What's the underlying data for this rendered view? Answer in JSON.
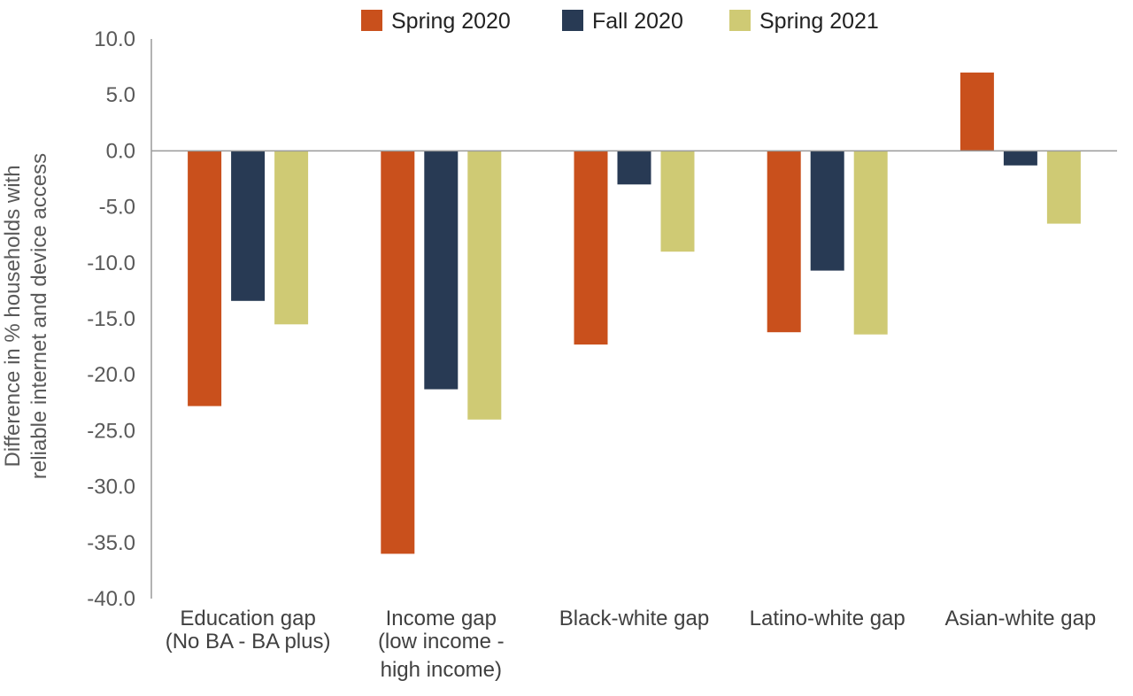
{
  "chart_data": {
    "type": "bar",
    "categories": [
      [
        "Education gap",
        "(No BA - BA plus)"
      ],
      [
        "Income gap",
        "(low income -",
        "high income)"
      ],
      [
        "Black-white gap"
      ],
      [
        "Latino-white gap"
      ],
      [
        "Asian-white gap"
      ]
    ],
    "series": [
      {
        "name": "Spring 2020",
        "color": "#C9501C",
        "values": [
          -22.8,
          -36.0,
          -17.3,
          -16.2,
          7.0
        ]
      },
      {
        "name": "Fall 2020",
        "color": "#283A54",
        "values": [
          -13.4,
          -21.3,
          -3.0,
          -10.7,
          -1.3
        ]
      },
      {
        "name": "Spring 2021",
        "color": "#CFCA74",
        "values": [
          -15.5,
          -24.0,
          -9.0,
          -16.4,
          -6.5
        ]
      }
    ],
    "ylabel": [
      "Difference in % households with",
      "reliable internet and device access"
    ],
    "ylim": [
      -40,
      10
    ],
    "yticks": [
      "10.0",
      "5.0",
      "0.0",
      "-5.0",
      "-10.0",
      "-15.0",
      "-20.0",
      "-25.0",
      "-30.0",
      "-35.0",
      "-40.0"
    ],
    "grid": false,
    "legend_position": "top"
  }
}
